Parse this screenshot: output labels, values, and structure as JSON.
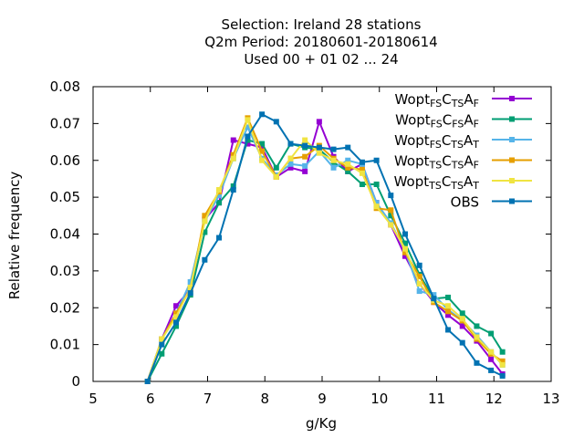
{
  "chart_data": {
    "type": "line",
    "title_lines": [
      "Selection: Ireland      28 stations",
      "Q2m  Period: 20180601-20180614",
      "Used  00 + 01 02 ... 24"
    ],
    "xlabel": "g/Kg",
    "ylabel": "Relative frequency",
    "xlim": [
      5,
      13
    ],
    "ylim": [
      0,
      0.08
    ],
    "xticks": [
      5,
      6,
      7,
      8,
      9,
      10,
      11,
      12,
      13
    ],
    "yticks": [
      0,
      0.01,
      0.02,
      0.03,
      0.04,
      0.05,
      0.06,
      0.07,
      0.08
    ],
    "ytick_labels": [
      "0",
      "0.01",
      "0.02",
      "0.03",
      "0.04",
      "0.05",
      "0.06",
      "0.07",
      "0.08"
    ],
    "legend_position": "top-right",
    "series": [
      {
        "name": "Wopt FS CTS AF",
        "label_parts": [
          [
            "Wopt",
            false
          ],
          [
            "FS",
            true
          ],
          [
            "C",
            false
          ],
          [
            "TS",
            true
          ],
          [
            "A",
            false
          ],
          [
            "F",
            true
          ]
        ],
        "color": "#9400d3",
        "marker": "square",
        "x": [
          5.95,
          6.2,
          6.45,
          6.7,
          6.95,
          7.2,
          7.45,
          7.7,
          7.95,
          8.2,
          8.45,
          8.7,
          8.95,
          9.2,
          9.45,
          9.7,
          9.95,
          10.2,
          10.45,
          10.7,
          10.95,
          11.2,
          11.45,
          11.7,
          11.95,
          12.15
        ],
        "y": [
          0,
          0.0115,
          0.0205,
          0.025,
          0.044,
          0.0485,
          0.0655,
          0.0645,
          0.0635,
          0.0555,
          0.058,
          0.057,
          0.0705,
          0.061,
          0.057,
          0.059,
          0.0485,
          0.0425,
          0.034,
          0.0265,
          0.0215,
          0.018,
          0.015,
          0.011,
          0.006,
          0.002
        ]
      },
      {
        "name": "Wopt FS CFS AF",
        "label_parts": [
          [
            "Wopt",
            false
          ],
          [
            "FS",
            true
          ],
          [
            "C",
            false
          ],
          [
            "FS",
            true
          ],
          [
            "A",
            false
          ],
          [
            "F",
            true
          ]
        ],
        "color": "#009e73",
        "marker": "square",
        "x": [
          5.95,
          6.2,
          6.45,
          6.7,
          6.95,
          7.2,
          7.45,
          7.7,
          7.95,
          8.2,
          8.45,
          8.7,
          8.95,
          9.2,
          9.45,
          9.7,
          9.95,
          10.2,
          10.45,
          10.7,
          10.95,
          11.2,
          11.45,
          11.7,
          11.95,
          12.15
        ],
        "y": [
          0,
          0.0075,
          0.015,
          0.0235,
          0.0405,
          0.0485,
          0.053,
          0.0655,
          0.0645,
          0.058,
          0.0645,
          0.0635,
          0.063,
          0.0595,
          0.057,
          0.0535,
          0.0535,
          0.045,
          0.0375,
          0.029,
          0.0225,
          0.0228,
          0.0185,
          0.015,
          0.013,
          0.008
        ]
      },
      {
        "name": "Wopt FS CTS AT",
        "label_parts": [
          [
            "Wopt",
            false
          ],
          [
            "FS",
            true
          ],
          [
            "C",
            false
          ],
          [
            "TS",
            true
          ],
          [
            "A",
            false
          ],
          [
            "T",
            true
          ]
        ],
        "color": "#56b4e9",
        "marker": "square",
        "x": [
          5.95,
          6.2,
          6.45,
          6.7,
          6.95,
          7.2,
          7.45,
          7.7,
          7.95,
          8.2,
          8.45,
          8.7,
          8.95,
          9.2,
          9.45,
          9.7,
          9.95,
          10.2,
          10.45,
          10.7,
          10.95,
          11.2,
          11.45,
          11.7,
          11.95,
          12.15
        ],
        "y": [
          0,
          0.0115,
          0.0185,
          0.027,
          0.0435,
          0.0505,
          0.0605,
          0.069,
          0.0605,
          0.056,
          0.059,
          0.0585,
          0.0625,
          0.058,
          0.06,
          0.059,
          0.0485,
          0.043,
          0.0355,
          0.0245,
          0.0235,
          0.0195,
          0.0165,
          0.0125,
          0.008,
          0.0045
        ]
      },
      {
        "name": "Wopt TS CTS AF",
        "label_parts": [
          [
            "Wopt",
            false
          ],
          [
            "TS",
            true
          ],
          [
            "C",
            false
          ],
          [
            "TS",
            true
          ],
          [
            "A",
            false
          ],
          [
            "F",
            true
          ]
        ],
        "color": "#e69f00",
        "marker": "square",
        "x": [
          5.95,
          6.2,
          6.45,
          6.7,
          6.95,
          7.2,
          7.45,
          7.7,
          7.95,
          8.2,
          8.45,
          8.7,
          8.95,
          9.2,
          9.45,
          9.7,
          9.95,
          10.2,
          10.45,
          10.7,
          10.95,
          11.2,
          11.45,
          11.7,
          11.95,
          12.15
        ],
        "y": [
          0,
          0.0115,
          0.0185,
          0.025,
          0.045,
          0.0515,
          0.0615,
          0.0715,
          0.0625,
          0.0555,
          0.0605,
          0.061,
          0.064,
          0.0605,
          0.058,
          0.0575,
          0.047,
          0.0465,
          0.035,
          0.0285,
          0.0215,
          0.019,
          0.0165,
          0.0115,
          0.0075,
          0.0055
        ]
      },
      {
        "name": "Wopt TS CTS AT",
        "label_parts": [
          [
            "Wopt",
            false
          ],
          [
            "TS",
            true
          ],
          [
            "C",
            false
          ],
          [
            "TS",
            true
          ],
          [
            "A",
            false
          ],
          [
            "T",
            true
          ]
        ],
        "color": "#f0e442",
        "marker": "square",
        "x": [
          5.95,
          6.2,
          6.45,
          6.7,
          6.95,
          7.2,
          7.45,
          7.7,
          7.95,
          8.2,
          8.45,
          8.7,
          8.95,
          9.2,
          9.45,
          9.7,
          9.95,
          10.2,
          10.45,
          10.7,
          10.95,
          11.2,
          11.45,
          11.7,
          11.95,
          12.15
        ],
        "y": [
          0,
          0.0115,
          0.0175,
          0.0255,
          0.0435,
          0.052,
          0.0605,
          0.071,
          0.06,
          0.0555,
          0.0605,
          0.0655,
          0.062,
          0.06,
          0.059,
          0.0565,
          0.0475,
          0.0425,
          0.036,
          0.0265,
          0.022,
          0.0205,
          0.017,
          0.012,
          0.008,
          0.0045
        ]
      },
      {
        "name": "OBS",
        "label_parts": [
          [
            "OBS",
            false
          ]
        ],
        "color": "#0072b2",
        "marker": "square",
        "x": [
          5.95,
          6.2,
          6.45,
          6.7,
          6.95,
          7.2,
          7.45,
          7.7,
          7.95,
          8.2,
          8.45,
          8.7,
          8.95,
          9.2,
          9.45,
          9.7,
          9.95,
          10.2,
          10.45,
          10.7,
          10.95,
          11.2,
          11.45,
          11.7,
          11.95,
          12.15
        ],
        "y": [
          0,
          0.01,
          0.016,
          0.024,
          0.033,
          0.039,
          0.052,
          0.0665,
          0.0725,
          0.0705,
          0.0645,
          0.064,
          0.0635,
          0.063,
          0.0635,
          0.0595,
          0.06,
          0.0505,
          0.04,
          0.0315,
          0.0225,
          0.014,
          0.0105,
          0.005,
          0.003,
          0.0015
        ]
      }
    ]
  }
}
